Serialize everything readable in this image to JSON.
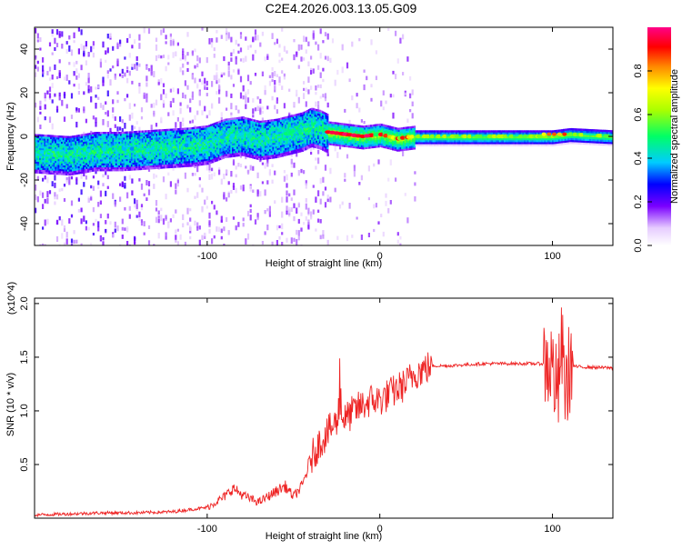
{
  "title": "C2E4.2026.003.13.05.G09",
  "chart_data": [
    {
      "type": "heatmap",
      "name": "spectrogram",
      "xlabel": "Height of straight line (km)",
      "ylabel": "Frequency (Hz)",
      "xlim": [
        -200,
        135
      ],
      "ylim": [
        -50,
        50
      ],
      "xticks": [
        -100,
        0,
        100
      ],
      "yticks": [
        -40,
        -20,
        0,
        20,
        40
      ],
      "xtick_labels": [
        "-100",
        "0",
        "100"
      ],
      "ytick_labels": [
        "-40",
        "-20",
        "0",
        "20",
        "40"
      ],
      "colorbar": {
        "label": "Normalized spectral amplitude",
        "range": [
          0,
          1
        ],
        "ticks": [
          0.0,
          0.2,
          0.4,
          0.6,
          0.8
        ],
        "tick_labels": [
          "0.0",
          "0.2",
          "0.4",
          "0.6",
          "0.8"
        ]
      },
      "ridge": {
        "x": [
          -200,
          -180,
          -165,
          -150,
          -130,
          -110,
          -100,
          -90,
          -80,
          -70,
          -60,
          -50,
          -45,
          -40,
          -35,
          -30,
          -20,
          -10,
          0,
          10,
          20,
          40,
          60,
          80,
          100,
          110,
          135
        ],
        "y": [
          -7,
          -8,
          -6,
          -6,
          -5,
          -4,
          -3,
          0,
          1,
          -1,
          0,
          2,
          3,
          5,
          4,
          2,
          1,
          0,
          1,
          -1,
          0,
          0,
          0,
          0,
          0,
          1,
          0
        ]
      }
    },
    {
      "type": "line",
      "name": "snr",
      "xlabel": "Height of straight line (km)",
      "ylabel": "SNR (10 * v/v)",
      "multiplier_label": "(x10^4)",
      "xlim": [
        -200,
        135
      ],
      "ylim": [
        0,
        2.05
      ],
      "xticks": [
        -100,
        0,
        100
      ],
      "yticks": [
        0.5,
        1.0,
        1.5,
        2.0
      ],
      "xtick_labels": [
        "-100",
        "0",
        "100"
      ],
      "ytick_labels": [
        "0.5",
        "1.0",
        "1.5",
        "2.0"
      ],
      "color": "#ee2222",
      "series": [
        {
          "name": "SNR",
          "x": [
            -200,
            -180,
            -160,
            -150,
            -140,
            -120,
            -100,
            -90,
            -85,
            -80,
            -75,
            -70,
            -60,
            -55,
            -50,
            -45,
            -40,
            -35,
            -30,
            -25,
            -22,
            -20,
            -15,
            -10,
            -5,
            0,
            5,
            10,
            15,
            20,
            30,
            40,
            60,
            80,
            95,
            100,
            103,
            105,
            108,
            110,
            115,
            135
          ],
          "y": [
            0.03,
            0.04,
            0.05,
            0.05,
            0.05,
            0.06,
            0.1,
            0.2,
            0.28,
            0.22,
            0.18,
            0.15,
            0.25,
            0.3,
            0.2,
            0.3,
            0.55,
            0.7,
            0.8,
            0.9,
            0.95,
            0.92,
            1.0,
            1.05,
            1.1,
            1.1,
            1.15,
            1.2,
            1.25,
            1.35,
            1.42,
            1.42,
            1.44,
            1.44,
            1.44,
            1.42,
            1.1,
            1.6,
            1.2,
            1.42,
            1.41,
            1.4
          ]
        }
      ]
    }
  ]
}
